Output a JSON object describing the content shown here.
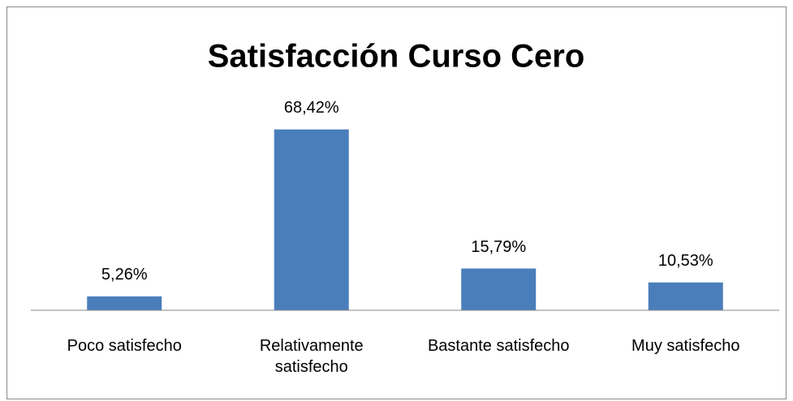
{
  "chart_data": {
    "type": "bar",
    "title": "Satisfacción Curso Cero",
    "categories": [
      "Poco satisfecho",
      "Relativamente satisfecho",
      "Bastante satisfecho",
      "Muy satisfecho"
    ],
    "values": [
      5.26,
      68.42,
      15.79,
      10.53
    ],
    "value_labels": [
      "5,26%",
      "68,42%",
      "15,79%",
      "10,53%"
    ],
    "color": "#4a7ebb",
    "ylim": [
      0,
      80
    ]
  }
}
